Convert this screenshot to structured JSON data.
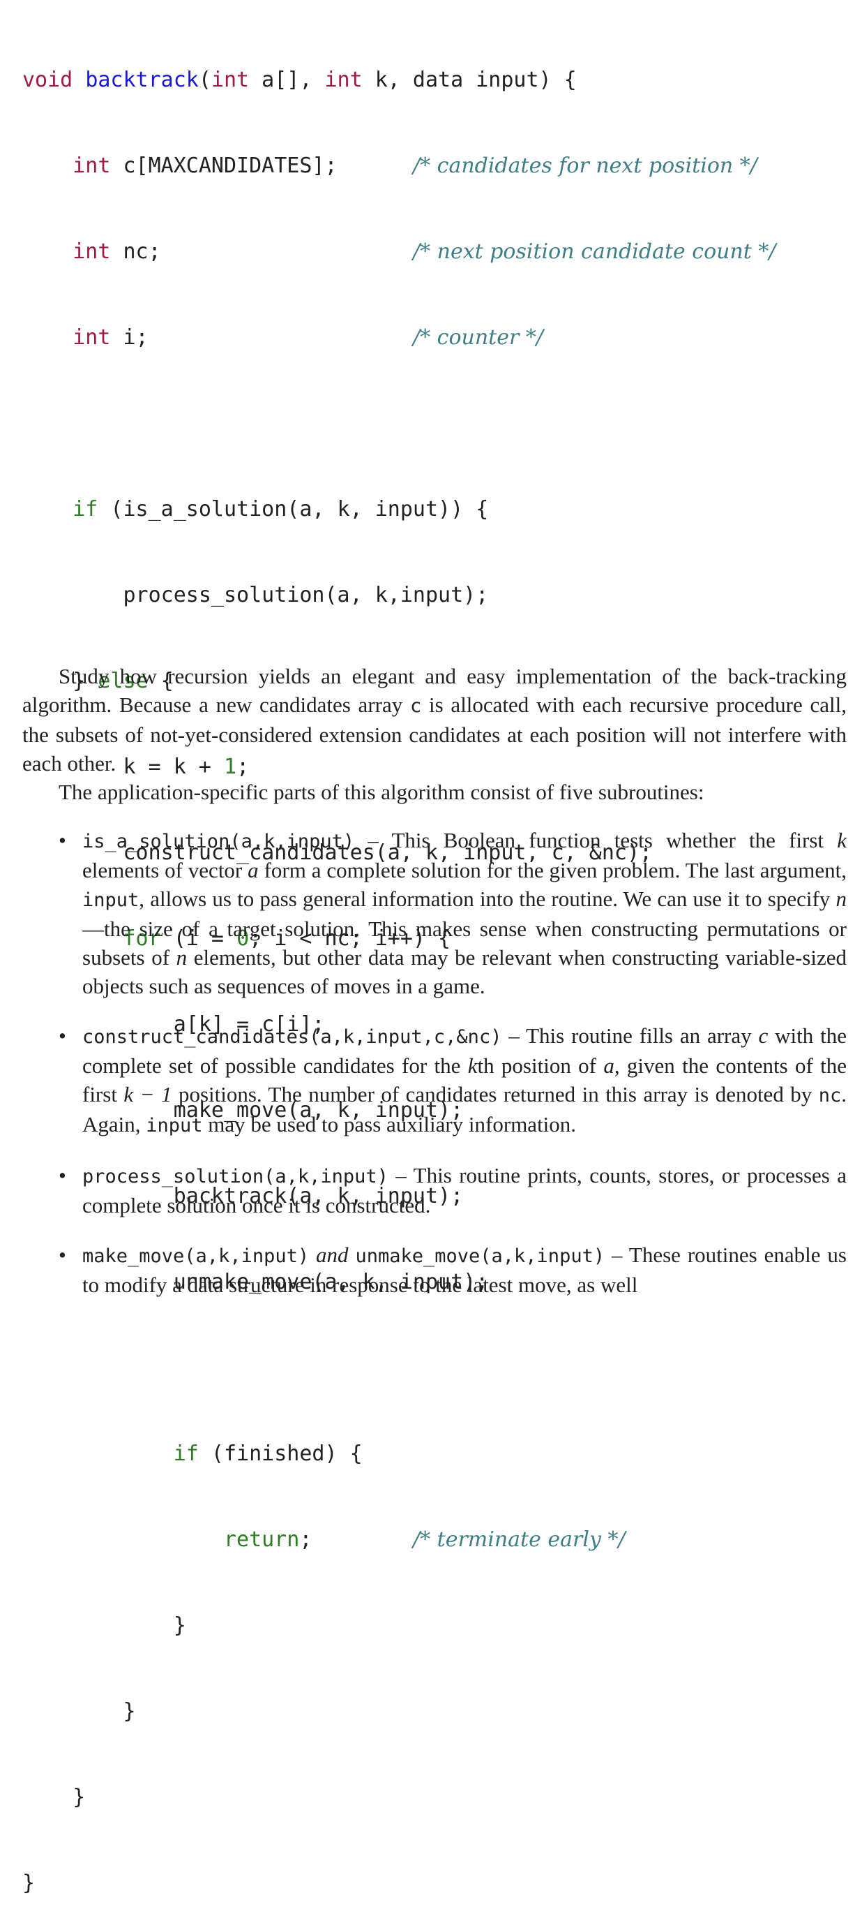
{
  "code": {
    "sig": {
      "void": "void",
      "name": "backtrack",
      "open": "(",
      "int1": "int",
      "p1": " a[], ",
      "int2": "int",
      "p2": " k, data input) {"
    },
    "decl_c": {
      "type": "int",
      "rest": " c[MAXCANDIDATES];",
      "comment": "/* candidates for next position */"
    },
    "decl_nc": {
      "type": "int",
      "rest": " nc;",
      "comment": "/* next position candidate count */"
    },
    "decl_i": {
      "type": "int",
      "rest": " i;",
      "comment": "/* counter */"
    },
    "if_sol": {
      "kw": "if",
      "rest": " (is_a_solution(a, k, input)) {"
    },
    "process": "process_solution(a, k,input);",
    "else": {
      "pre": "} ",
      "kw": "else",
      "post": " {"
    },
    "k_inc": {
      "pre": "k = k + ",
      "num": "1",
      "post": ";"
    },
    "construct": "construct_candidates(a, k, input, c, &nc);",
    "for": {
      "kw": "for",
      "pre": " (i = ",
      "num": "0",
      "post": "; i < nc; i++) {"
    },
    "assign": "a[k] = c[i];",
    "make": "make_move(a, k, input);",
    "recurse": "backtrack(a, k, input);",
    "unmake": "unmake_move(a, k, input);",
    "if_fin": {
      "kw": "if",
      "rest": " (finished) {"
    },
    "return": {
      "kw": "return",
      "rest": ";",
      "comment": "/* terminate early */"
    },
    "close": "}"
  },
  "para1": {
    "a": "Study how recursion yields an elegant and easy implementation of the back-tracking algorithm. Because a new candidates array ",
    "c": "c",
    "b": " is allocated with each recursive procedure call, the subsets of not-yet-considered extension candidates at each position will not interfere with each other."
  },
  "para2": "The application-specific parts of this algorithm consist of five subroutines:",
  "bullet": "•",
  "items": [
    {
      "code": "is_a_solution(a,k,input)",
      "t1": " – This Boolean function tests whether the first ",
      "k": "k",
      "t2": " elements of vector ",
      "a": "a",
      "t3": " form a complete solution for the given problem. The last argument, ",
      "input": "input",
      "t4": ", allows us to pass general information into the routine. We can use it to specify ",
      "n1": "n",
      "t5": "—the size of a target solution. This makes sense when constructing permutations or subsets of ",
      "n2": "n",
      "t6": " elements, but other data may be relevant when constructing variable-sized objects such as sequences of moves in a game."
    },
    {
      "code": "construct_candidates(a,k,input,c,&nc)",
      "t1": " – This routine fills an array ",
      "c": "c",
      "t2": " with the complete set of possible candidates for the ",
      "k": "k",
      "t3": "th position of ",
      "a": "a",
      "t4": ", given the contents of the first ",
      "km1": "k − 1",
      "t5": " positions. The number of candidates returned in this array is denoted by ",
      "nc": "nc",
      "t6": ". Again, ",
      "input": "input",
      "t7": " may be used to pass auxiliary information."
    },
    {
      "code": "process_solution(a,k,input)",
      "t1": " – This routine prints, counts, stores, or processes a complete solution once it is constructed."
    },
    {
      "code1": "make_move(a,k,input)",
      "and": " and ",
      "code2": "unmake_move(a,k,input)",
      "t1": " – These routines enable us to modify a data structure in response to the latest move, as well"
    }
  ]
}
